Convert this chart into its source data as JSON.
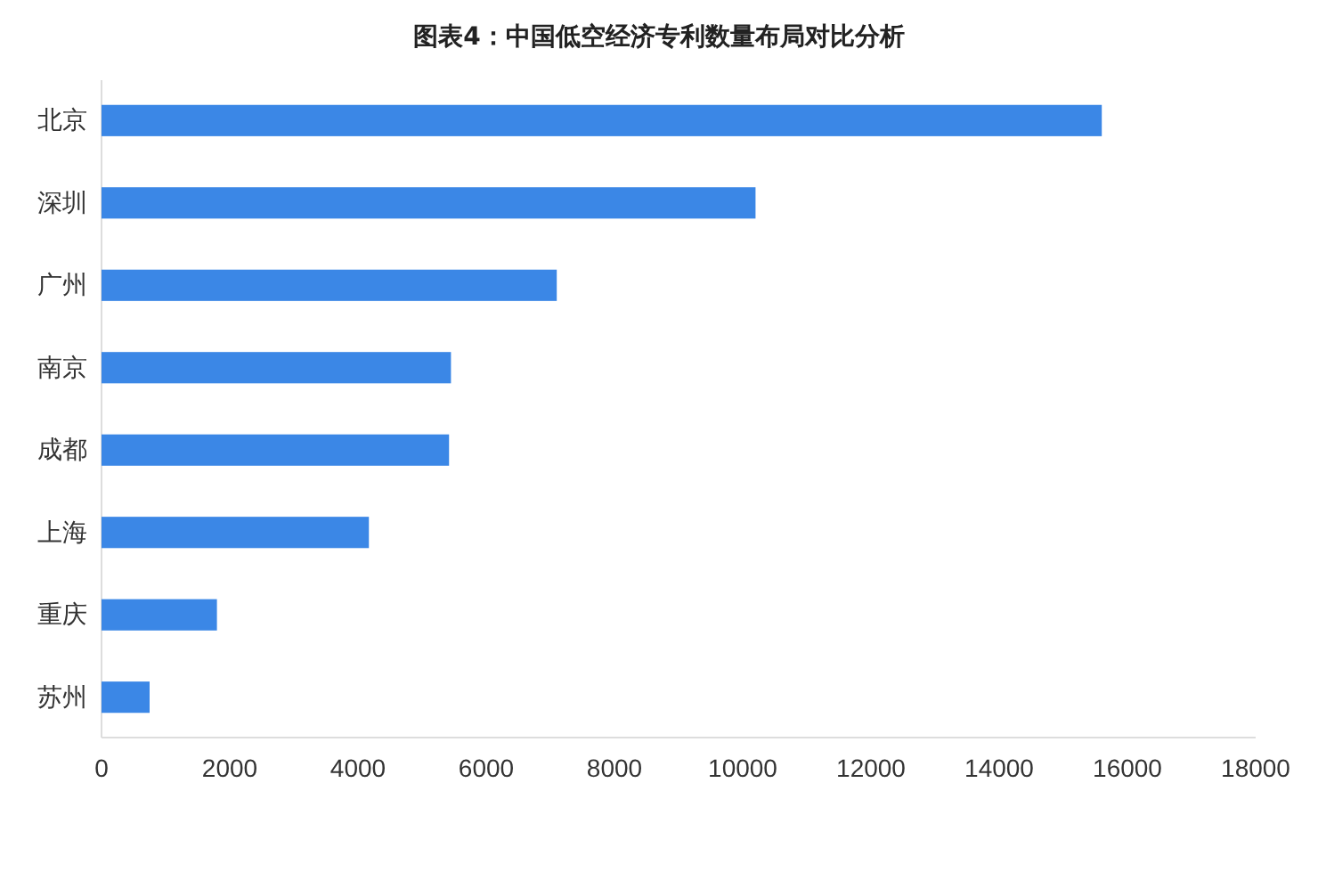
{
  "chart_data": {
    "type": "bar",
    "orientation": "horizontal",
    "title": "图表4：中国低空经济专利数量布局对比分析",
    "categories": [
      "北京",
      "深圳",
      "广州",
      "南京",
      "成都",
      "上海",
      "重庆",
      "苏州"
    ],
    "values": [
      15600,
      10200,
      7100,
      5450,
      5420,
      4170,
      1800,
      750
    ],
    "color": "#3b87e6",
    "xlim": [
      0,
      18000
    ],
    "xticks": [
      0,
      2000,
      4000,
      6000,
      8000,
      10000,
      12000,
      14000,
      16000,
      18000
    ],
    "grid": false
  }
}
